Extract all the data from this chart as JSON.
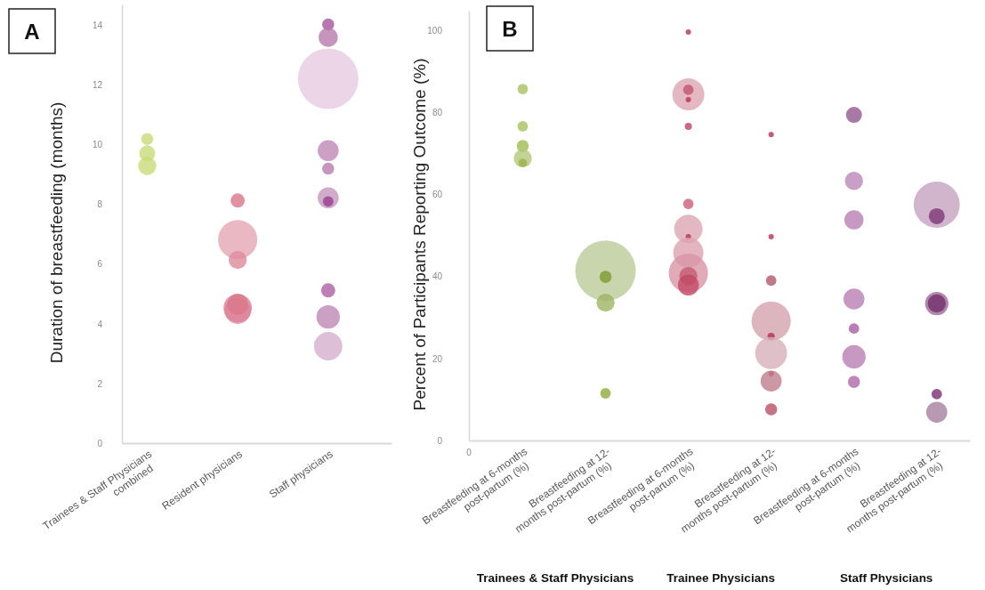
{
  "chart_data": [
    {
      "type": "bubble",
      "ylabel": "Duration of breastfeeding (months)",
      "annotations": [
        "A"
      ],
      "categories": [
        "Trainees & Staff Physicians combined",
        "Resident physicians",
        "Staff physicians"
      ],
      "ylim": [
        0,
        14.7
      ],
      "yticks": [
        0,
        2,
        4,
        6,
        8,
        10,
        12,
        14
      ],
      "series": [
        {
          "values": [
            10.19,
            8.13,
            14.03
          ],
          "sizes": [
            0.04,
            0.055,
            0.04
          ],
          "colors": [
            "#c8dc78",
            "#d9778a",
            "#a6529a"
          ]
        },
        {
          "values": [
            9.71,
            6.82,
            13.6
          ],
          "sizes": [
            0.07,
            0.42,
            0.1
          ],
          "colors": [
            "#c8dc78",
            "#e4a6b3",
            "#b77aad"
          ]
        },
        {
          "values": [
            9.29,
            6.14,
            12.21
          ],
          "sizes": [
            0.09,
            0.09,
            1
          ],
          "colors": [
            "#c8dc78",
            "#de8c9c",
            "#e6cbe0"
          ]
        },
        {
          "values": [
            null,
            4.53,
            9.8
          ],
          "sizes": [
            null,
            0.22,
            0.12
          ],
          "colors": [
            null,
            "#dc8498",
            "#bf88b7"
          ]
        },
        {
          "values": [
            null,
            4.44,
            9.2
          ],
          "sizes": [
            null,
            0.19,
            0.04
          ],
          "colors": [
            null,
            "#dc8498",
            "#b87bb0"
          ]
        },
        {
          "values": [
            null,
            4.65,
            8.22
          ],
          "sizes": [
            null,
            0.12,
            0.12
          ],
          "colors": [
            null,
            "#d9788b",
            "#c596bd"
          ]
        },
        {
          "values": [
            null,
            null,
            8.1
          ],
          "sizes": [
            null,
            null,
            0.03
          ],
          "colors": [
            null,
            null,
            "#9b3f8c"
          ]
        },
        {
          "values": [
            null,
            null,
            5.12
          ],
          "sizes": [
            null,
            null,
            0.055
          ],
          "colors": [
            null,
            null,
            "#ad5fa2"
          ]
        },
        {
          "values": [
            null,
            null,
            4.23
          ],
          "sizes": [
            null,
            null,
            0.15
          ],
          "colors": [
            null,
            null,
            "#bf88b7"
          ]
        },
        {
          "values": [
            null,
            null,
            3.25
          ],
          "sizes": [
            null,
            null,
            0.22
          ],
          "colors": [
            null,
            null,
            "#d4afcd"
          ]
        }
      ]
    },
    {
      "type": "bubble",
      "ylabel": "Percent of Participants Reporting Outcome (%)",
      "annotations": [
        "B",
        "0",
        "Trainees & Staff Physicians",
        "Trainee Physicians",
        "Staff Physicians"
      ],
      "categories": [
        "Breastfeeding at 6-months post-partum (%)",
        "Breastfeeding at 12-months post-partum (%)",
        "Breastfeeding at 6-months post-partum (%)",
        "Breastfeeding at 12-months post-partum (%)",
        "Breastfeeding at 6-months post-partum (%)",
        "Breastfeeding at 12-months post-partum (%)"
      ],
      "ylim": [
        0,
        104.8
      ],
      "yticks": [
        0,
        20,
        40,
        60,
        80,
        100
      ],
      "series": [
        {
          "values": [
            85.7,
            41.4,
            99.6,
            74.6,
            79.4,
            57.5
          ],
          "sizes": [
            0.03,
            1,
            0.008,
            0.008,
            0.07,
            0.58
          ],
          "colors": [
            "#a8c25e",
            "#bccb98",
            "#b8324f",
            "#b8324f",
            "#93588f",
            "#c4a3c0"
          ]
        },
        {
          "values": [
            76.6,
            39.9,
            84.4,
            49.7,
            63.3,
            54.7
          ],
          "sizes": [
            0.03,
            0.04,
            0.28,
            0.008,
            0.09,
            0.07
          ],
          "colors": [
            "#a8c25e",
            "#7e9b2e",
            "#dda6b3",
            "#b8324f",
            "#bd87b6",
            "#7c3875"
          ]
        },
        {
          "values": [
            71.8,
            33.6,
            85.5,
            39,
            53.8,
            33.4
          ],
          "sizes": [
            0.04,
            0.09,
            0.03,
            0.03,
            0.1,
            0.15
          ],
          "colors": [
            "#a0bb50",
            "#9fb563",
            "#c4546c",
            "#b2566c",
            "#b97fb3",
            "#9e6c98"
          ]
        },
        {
          "values": [
            68.8,
            11.5,
            83.1,
            29.1,
            34.5,
            33.4
          ],
          "sizes": [
            0.09,
            0.03,
            0.008,
            0.42,
            0.12,
            0.09
          ],
          "colors": [
            "#b3c878",
            "#8eab3e",
            "#b8324f",
            "#d3a2ae",
            "#b97fb3",
            "#74306c"
          ]
        },
        {
          "values": [
            67.7,
            null,
            76.6,
            25.4,
            27.3,
            11.3
          ],
          "sizes": [
            0.02,
            null,
            0.014,
            0.014,
            0.03,
            0.03
          ],
          "colors": [
            "#98b448",
            null,
            "#c0445f",
            "#b0304c",
            "#a85ea1",
            "#7a2f70"
          ]
        },
        {
          "values": [
            null,
            null,
            57.7,
            21.3,
            20.4,
            6.9
          ],
          "sizes": [
            null,
            null,
            0.03,
            0.28,
            0.15,
            0.12
          ],
          "colors": [
            null,
            null,
            "#c96077",
            "#d8b0ba",
            "#b97fb3",
            "#a57fa1"
          ]
        },
        {
          "values": [
            null,
            null,
            51.6,
            16.3,
            14.3,
            null
          ],
          "sizes": [
            null,
            null,
            0.22,
            0.008,
            0.04,
            null
          ],
          "colors": [
            null,
            null,
            "#dda6b3",
            "#b0304c",
            "#b068a9",
            null
          ]
        },
        {
          "values": [
            null,
            null,
            49.7,
            14.5,
            null,
            null
          ],
          "sizes": [
            null,
            null,
            0.008,
            0.12,
            null,
            null
          ],
          "colors": [
            null,
            null,
            "#b8324f",
            "#c17d8d",
            null,
            null
          ]
        },
        {
          "values": [
            null,
            null,
            45.8,
            7.6,
            null,
            null
          ],
          "sizes": [
            null,
            null,
            0.25,
            0.04,
            null,
            null
          ],
          "colors": [
            null,
            null,
            "#dca2b0",
            "#b65067",
            null,
            null
          ]
        },
        {
          "values": [
            null,
            null,
            40.8,
            null,
            null,
            null
          ],
          "sizes": [
            null,
            null,
            0.42,
            null,
            null,
            null
          ],
          "colors": [
            null,
            null,
            "#d995a6",
            null,
            null,
            null
          ]
        },
        {
          "values": [
            null,
            null,
            40.1,
            null,
            null,
            null
          ],
          "sizes": [
            null,
            null,
            0.09,
            null,
            null,
            null
          ],
          "colors": [
            null,
            null,
            "#c35c72",
            null,
            null,
            null
          ]
        },
        {
          "values": [
            null,
            null,
            37.9,
            null,
            null,
            null
          ],
          "sizes": [
            null,
            null,
            0.12,
            null,
            null,
            null
          ],
          "colors": [
            null,
            null,
            "#c24a64",
            null,
            null,
            null
          ]
        }
      ]
    }
  ]
}
